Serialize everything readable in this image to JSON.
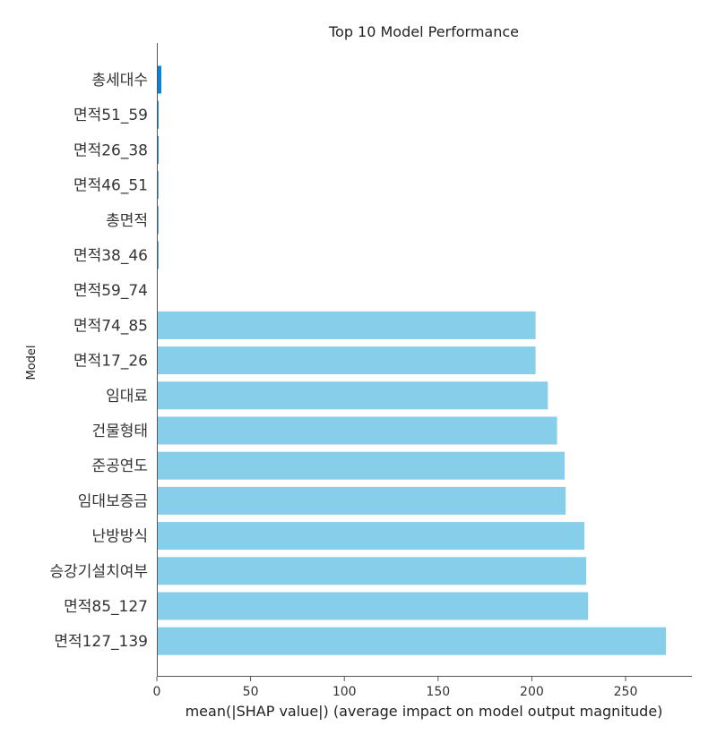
{
  "chart_data": {
    "type": "bar",
    "orientation": "horizontal",
    "title": "Top 10 Model Performance",
    "xlabel": "mean(|SHAP value|) (average impact on model output magnitude)",
    "ylabel": "Model",
    "xlim": [
      0,
      285
    ],
    "xticks": [
      0,
      50,
      100,
      150,
      200,
      250
    ],
    "categories": [
      "총세대수",
      "면적51_59",
      "면적26_38",
      "면적46_51",
      "총면적",
      "면적38_46",
      "면적59_74",
      "면적74_85",
      "면적17_26",
      "임대료",
      "건물형태",
      "준공연도",
      "임대보증금",
      "난방방식",
      "승강기설치여부",
      "면적85_127",
      "면적127_139"
    ],
    "values": [
      2.4,
      0.9,
      0.9,
      0.8,
      0.8,
      0.8,
      0.3,
      202,
      202,
      208.5,
      213.5,
      217.5,
      218,
      228,
      229,
      230,
      271.5
    ],
    "colors": [
      "#0a84d6",
      "#0a84d6",
      "#0a84d6",
      "#0a84d6",
      "#0a84d6",
      "#0a84d6",
      "#0a84d6",
      "#87ceeb",
      "#87ceeb",
      "#87ceeb",
      "#87ceeb",
      "#87ceeb",
      "#87ceeb",
      "#87ceeb",
      "#87ceeb",
      "#87ceeb",
      "#87ceeb"
    ],
    "grid": false
  }
}
